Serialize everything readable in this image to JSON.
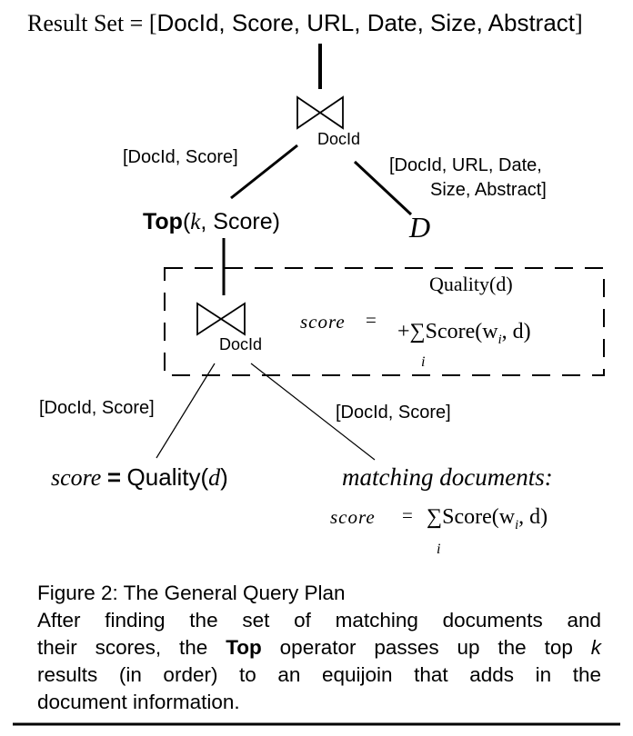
{
  "result_set": {
    "prefix": "Result Set = [",
    "fields": "DocId, Score, URL, Date, Size, Abstract",
    "suffix": "]"
  },
  "top_join": {
    "attr": "DocId"
  },
  "edge_left_top": "[DocId, Score]",
  "edge_right_top_line1": "[DocId, URL, Date,",
  "edge_right_top_line2": "Size, Abstract]",
  "top_operator": {
    "name": "Top",
    "paren_open": "(",
    "arg_k": "k",
    "arg_rest": ", Score)"
  },
  "relation_d": "D",
  "inner_join": {
    "attr": "DocId"
  },
  "inner_formula": {
    "quality_label": "Quality(d)",
    "score_word": "score",
    "equals": "=",
    "plus_sum": "+∑",
    "score_fn": "Score(w",
    "subscript": "i",
    "fn_tail": ", d)",
    "sum_index": "i"
  },
  "edge_left_bottom": "[DocId, Score]",
  "edge_right_bottom": "[DocId, Score]",
  "quality_leaf": {
    "score_word": "score",
    "equals": "=",
    "fn": "Quality(",
    "var": "d",
    "close": ")"
  },
  "matching_leaf": {
    "title": "matching documents:",
    "score_word": "score",
    "equals": "=",
    "sum": "∑",
    "score_fn": "Score(w",
    "subscript": "i",
    "fn_tail": ", d)",
    "sum_index": "i"
  },
  "caption": {
    "title": "Figure 2: The General Query Plan",
    "line1": "After finding the set of matching documents and",
    "line2_pre": "their scores, the",
    "line2_bold": "Top",
    "line2_post": "operator passes up the top",
    "line2_k": "k",
    "line3": "results (in order) to an equijoin that adds in the",
    "line4": "document information."
  }
}
